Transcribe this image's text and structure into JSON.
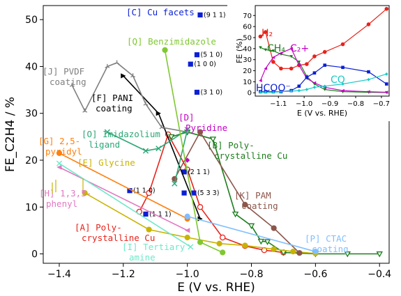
{
  "chart_data": [
    {
      "type": "line",
      "xlabel": "E (V vs. RHE)",
      "ylabel": "FE_C2H4 / %",
      "xlim": [
        -1.45,
        -0.37
      ],
      "ylim": [
        -2,
        53
      ],
      "xticks": [
        -1.4,
        -1.2,
        -1.0,
        -0.8,
        -0.6,
        -0.4
      ],
      "xtick_labels": [
        "−1.4",
        "−1.2",
        "−1.0",
        "−0.8",
        "−0.6",
        "−0.4"
      ],
      "yticks": [
        0,
        10,
        20,
        30,
        40,
        50
      ],
      "ytick_labels": [
        "0",
        "10",
        "20",
        "30",
        "40",
        "50"
      ],
      "grid": false,
      "series": [
        {
          "name": "[A] Poly-crystalline Cu",
          "color": "#e8221a",
          "marker": "open-circle",
          "x": [
            -1.15,
            -1.12,
            -1.06,
            -1.0,
            -0.96,
            -0.89,
            -0.82,
            -0.76,
            -0.7
          ],
          "y": [
            9,
            13,
            25.5,
            18,
            10,
            3.5,
            1.7,
            0.8,
            0.3
          ]
        },
        {
          "name": "[B] Poly-crystalline Cu",
          "color": "#1b7e1b",
          "marker": "open-triangle-down",
          "x": [
            -1.05,
            -1.0,
            -0.92,
            -0.85,
            -0.8,
            -0.77,
            -0.75,
            -0.7,
            -0.6,
            -0.5,
            -0.4
          ],
          "y": [
            25,
            26,
            24.5,
            8.5,
            6,
            2.7,
            2.6,
            0.3,
            0,
            0,
            0
          ]
        },
        {
          "name": "[C] Cu facets",
          "color": "#0b1fd4",
          "marker": "square",
          "x": [
            -0.96,
            -0.97,
            -0.99,
            -0.97,
            -1.01,
            -0.98,
            -1.18,
            -1.01,
            -1.13
          ],
          "y": [
            51,
            42.5,
            40.5,
            34.5,
            17.5,
            13,
            13.5,
            13,
            8.5
          ],
          "facets": [
            "(9 1 1)",
            "(5 1 0)",
            "(1 0 0)",
            "(3 1 0)",
            "(2 1 1)",
            "(5 3 3)",
            "(1 1 0)",
            "",
            "(1 1 1)"
          ]
        },
        {
          "name": "[D] Pyridine",
          "color": "#c400c4",
          "marker": "diamond",
          "x": [
            -1.0
          ],
          "y": [
            20
          ]
        },
        {
          "name": "[E] Glycine",
          "color": "#c8b400",
          "marker": "circle",
          "x": [
            -1.32,
            -1.12,
            -1.0,
            -0.9,
            -0.82,
            -0.73,
            -0.67,
            -0.6
          ],
          "y": [
            13,
            5.2,
            3.5,
            2.2,
            1.8,
            1.0,
            0.5,
            0.1
          ]
        },
        {
          "name": "[F] PANI coating",
          "color": "#000000",
          "marker": "triangle-right",
          "x": [
            -1.2,
            -1.09,
            -0.96
          ],
          "y": [
            38,
            30,
            7.5
          ]
        },
        {
          "name": "[G] 2,5-pyridyl",
          "color": "#ff7f0e",
          "marker": "circle",
          "x": [
            -1.4,
            -1.0
          ],
          "y": [
            21.5,
            7.5
          ]
        },
        {
          "name": "[H] 1,3,5-phenyl",
          "color": "#e377c2",
          "marker": "triangle-left",
          "x": [
            -1.4,
            -1.0
          ],
          "y": [
            18.5,
            5
          ]
        },
        {
          "name": "[I] Tertiary amine",
          "color": "#6ee8c8",
          "marker": "x",
          "x": [
            -1.4,
            -0.99
          ],
          "y": [
            19.3,
            1.5
          ]
        },
        {
          "name": "[J] PVDF coating",
          "color": "#7f7f7f",
          "marker": "3-tri",
          "x": [
            -1.36,
            -1.32,
            -1.25,
            -1.22,
            -1.17,
            -1.13,
            -1.08,
            -1.0
          ],
          "y": [
            36,
            30.5,
            40,
            40.8,
            38,
            32,
            27,
            26
          ]
        },
        {
          "name": "[K] PAM coating",
          "color": "#8c564b",
          "marker": "circle",
          "x": [
            -1.04,
            -0.96,
            -0.82,
            -0.73,
            -0.65
          ],
          "y": [
            16,
            26,
            10.5,
            5.5,
            0.2
          ]
        },
        {
          "name": "[O] Imidazolium ligand",
          "color": "#2ca775",
          "marker": "x",
          "x": [
            -1.25,
            -1.13,
            -1.09,
            -1.0,
            -1.04
          ],
          "y": [
            26,
            22,
            22.5,
            26.5,
            15
          ]
        },
        {
          "name": "[P] CTAC coating",
          "color": "#7fbfff",
          "marker": "circle",
          "x": [
            -1.0,
            -0.6
          ],
          "y": [
            8,
            0.5
          ]
        },
        {
          "name": "[Q] Benzimidazole",
          "color": "#7fc832",
          "marker": "circle",
          "x": [
            -1.07,
            -0.96,
            -0.89
          ],
          "y": [
            43.5,
            2.5,
            0.3
          ]
        }
      ],
      "annotations": [
        {
          "text": "[A] Poly-\ncrystalline Cu",
          "color": "#e8221a"
        },
        {
          "text": "[B] Poly-\ncrystalline Cu",
          "color": "#1b7e1b"
        },
        {
          "text": "[C] Cu facets",
          "color": "#0b1fd4"
        },
        {
          "text": "[D]\nPyridine",
          "color": "#c400c4"
        },
        {
          "text": "[E] Glycine",
          "color": "#c8b400"
        },
        {
          "text": "[F] PANI\ncoating",
          "color": "#000000"
        },
        {
          "text": "[G] 2,5-\npyridyl",
          "color": "#ff7f0e"
        },
        {
          "text": "[H] 1,3,5-\nphenyl",
          "color": "#e377c2"
        },
        {
          "text": "[I] Tertiary\namine",
          "color": "#6ee8c8"
        },
        {
          "text": "[J] PVDF\ncoating",
          "color": "#7f7f7f"
        },
        {
          "text": "[K] PAM\ncoating",
          "color": "#8c564b"
        },
        {
          "text": "[O] Imidazolium\nligand",
          "color": "#2ca775"
        },
        {
          "text": "[P] CTAC\ncoating",
          "color": "#7fbfff"
        },
        {
          "text": "[Q] Benzimidazole",
          "color": "#7fc832"
        }
      ]
    },
    {
      "type": "line",
      "xlabel": "E (V vs. RHE)",
      "ylabel": "FE (%)",
      "xlim": [
        -1.19,
        -0.67
      ],
      "ylim": [
        -3,
        79
      ],
      "xticks": [
        -1.1,
        -1.0,
        -0.9,
        -0.8,
        -0.7
      ],
      "xtick_labels": [
        "−1.1",
        "−1.0",
        "−0.9",
        "−0.8",
        "−0.7"
      ],
      "yticks": [
        0,
        10,
        20,
        30,
        40,
        50,
        60,
        70
      ],
      "ytick_labels": [
        "0",
        "10",
        "20",
        "30",
        "40",
        "50",
        "60",
        "70"
      ],
      "series": [
        {
          "name": "H₂",
          "color": "#e8221a",
          "x": [
            -1.17,
            -1.15,
            -1.12,
            -1.09,
            -1.05,
            -1.02,
            -0.99,
            -0.96,
            -0.92,
            -0.85,
            -0.75,
            -0.68
          ],
          "y": [
            51,
            55,
            28,
            22,
            22,
            25,
            26,
            33,
            37,
            44,
            62,
            76
          ]
        },
        {
          "name": "CH₄",
          "color": "#1b7e1b",
          "x": [
            -1.17,
            -1.15,
            -1.12,
            -1.09,
            -1.05,
            -1.02,
            -0.99,
            -0.96,
            -0.92,
            -0.85,
            -0.75,
            -0.68
          ],
          "y": [
            41,
            39,
            38,
            35,
            33,
            28,
            15,
            8,
            3,
            1,
            0.5,
            0.3
          ]
        },
        {
          "name": "C₂+",
          "color": "#c400c4",
          "x": [
            -1.17,
            -1.15,
            -1.12,
            -1.09,
            -1.05,
            -1.02,
            -0.99,
            -0.96,
            -0.92,
            -0.85,
            -0.75,
            -0.68
          ],
          "y": [
            11,
            22,
            32,
            36,
            40,
            25,
            13,
            9,
            5,
            2,
            1,
            0.5
          ]
        },
        {
          "name": "HCOO⁻",
          "color": "#0b1fd4",
          "x": [
            -1.17,
            -1.15,
            -1.12,
            -1.09,
            -1.05,
            -1.02,
            -0.99,
            -0.96,
            -0.92,
            -0.85,
            -0.75,
            -0.68
          ],
          "y": [
            1,
            1,
            1,
            1,
            2,
            6,
            14,
            18,
            25,
            23,
            19,
            8
          ]
        },
        {
          "name": "CO",
          "color": "#17c9c9",
          "x": [
            -1.17,
            -1.15,
            -1.12,
            -1.09,
            -1.05,
            -1.02,
            -0.99,
            -0.96,
            -0.92,
            -0.85,
            -0.75,
            -0.68
          ],
          "y": [
            0.5,
            0.5,
            0.5,
            1,
            1.5,
            2,
            3,
            5,
            6,
            8,
            12,
            17
          ]
        }
      ]
    }
  ]
}
